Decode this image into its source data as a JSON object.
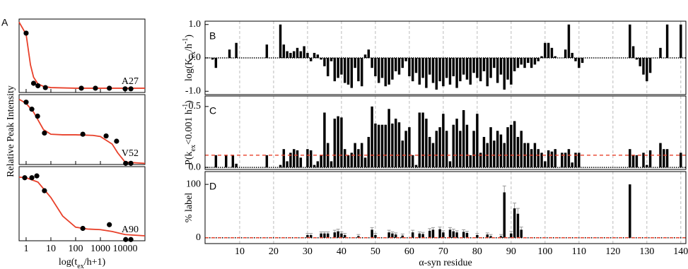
{
  "chart_data": [
    {
      "type": "scatter",
      "panel_label": "A",
      "ylabel": "Relative Peak Intensity",
      "xlabel": [
        [
          "log(t",
          ""
        ],
        [
          "ex",
          "sub"
        ],
        [
          "/h+1)",
          ""
        ]
      ],
      "log_x": true,
      "xlim": [
        0.52,
        63000
      ],
      "xticks": [
        1,
        10,
        100,
        1000,
        10000
      ],
      "ylim": [
        -0.1,
        1.1
      ],
      "point_color": "#000000",
      "fit_color": "#e8402a",
      "panels": [
        {
          "label": "A27",
          "x": [
            1,
            2,
            3,
            6,
            170,
            630,
            2300,
            10000,
            17000
          ],
          "y": [
            0.87,
            0.05,
            0.01,
            -0.02,
            -0.03,
            -0.03,
            -0.03,
            -0.04,
            -0.04
          ],
          "fit_x": [
            0.52,
            1,
            1.5,
            2,
            3,
            5,
            10,
            100,
            1000,
            63000
          ],
          "fit_y": [
            1.05,
            0.85,
            0.35,
            0.15,
            0.04,
            0.0,
            -0.02,
            -0.03,
            -0.03,
            -0.03
          ]
        },
        {
          "label": "V52",
          "x": [
            1,
            1.7,
            2.9,
            5.5,
            195,
            1700,
            4500,
            10500,
            17000
          ],
          "y": [
            0.97,
            0.85,
            0.73,
            0.44,
            0.42,
            0.39,
            0.3,
            -0.08,
            -0.08
          ],
          "fit_x": [
            0.52,
            1,
            2,
            5,
            10,
            30,
            100,
            500,
            1000,
            3000,
            5000,
            10000,
            63000
          ],
          "fit_y": [
            1.02,
            0.95,
            0.8,
            0.5,
            0.42,
            0.41,
            0.41,
            0.4,
            0.38,
            0.25,
            0.1,
            -0.06,
            -0.08
          ]
        },
        {
          "label": "A90",
          "x": [
            0.88,
            1.7,
            2.7,
            5.5,
            195,
            2300,
            10500,
            17000
          ],
          "y": [
            0.92,
            0.92,
            0.95,
            0.71,
            0.1,
            0.16,
            -0.08,
            -0.08
          ],
          "fit_x": [
            0.52,
            1,
            3,
            10,
            30,
            100,
            300,
            1000,
            3000,
            10000,
            63000
          ],
          "fit_y": [
            0.93,
            0.92,
            0.85,
            0.6,
            0.3,
            0.12,
            0.09,
            0.08,
            0.05,
            0.0,
            -0.02
          ]
        }
      ]
    },
    {
      "type": "bar",
      "panel_label": "B",
      "ylabel": [
        [
          "log(K",
          ""
        ],
        [
          "ex",
          "sub"
        ],
        [
          "/h",
          ""
        ],
        [
          "-1",
          "sup"
        ],
        [
          ")",
          ""
        ]
      ],
      "xlim": [
        -0.2,
        141.5
      ],
      "xticks": [
        10,
        20,
        30,
        40,
        50,
        60,
        70,
        80,
        90,
        100,
        110,
        120,
        130,
        140
      ],
      "ylim": [
        -1.1,
        1.1
      ],
      "yticks": [
        {
          "value": -1,
          "label": "-1.0"
        },
        {
          "value": 0,
          "label": "0.0"
        },
        {
          "value": 1,
          "label": "1.0"
        }
      ],
      "grid": true,
      "color": "#000000",
      "x": [
        1,
        2,
        3,
        4,
        5,
        6,
        7,
        8,
        9,
        10,
        11,
        12,
        13,
        14,
        15,
        16,
        17,
        18,
        19,
        20,
        21,
        22,
        23,
        24,
        25,
        26,
        27,
        28,
        29,
        30,
        31,
        32,
        33,
        34,
        35,
        36,
        37,
        38,
        39,
        40,
        41,
        42,
        43,
        44,
        45,
        46,
        47,
        48,
        49,
        50,
        51,
        52,
        53,
        54,
        55,
        56,
        57,
        58,
        59,
        60,
        61,
        62,
        63,
        64,
        65,
        66,
        67,
        68,
        69,
        70,
        71,
        72,
        73,
        74,
        75,
        76,
        77,
        78,
        79,
        80,
        81,
        82,
        83,
        84,
        85,
        86,
        87,
        88,
        89,
        90,
        91,
        92,
        93,
        94,
        95,
        96,
        97,
        98,
        99,
        100,
        101,
        102,
        103,
        104,
        105,
        106,
        107,
        108,
        109,
        110,
        111,
        112,
        113,
        114,
        115,
        116,
        117,
        118,
        119,
        120,
        121,
        122,
        123,
        124,
        125,
        126,
        127,
        128,
        129,
        130,
        131,
        132,
        133,
        134,
        135,
        136,
        137,
        138,
        139,
        140
      ],
      "values": [
        null,
        -0.05,
        -0.3,
        null,
        null,
        null,
        0.25,
        null,
        0.45,
        null,
        null,
        null,
        null,
        null,
        null,
        null,
        null,
        0.4,
        null,
        null,
        null,
        1.0,
        0.4,
        0.2,
        0.15,
        0.2,
        0.3,
        0.2,
        0.35,
        0.15,
        -0.1,
        0.15,
        0.1,
        -0.05,
        -0.25,
        -0.55,
        -0.1,
        -0.7,
        -0.6,
        -0.5,
        -0.75,
        -0.8,
        -0.9,
        -0.3,
        -0.7,
        -0.85,
        0.1,
        0.25,
        -0.3,
        -0.55,
        -0.75,
        -0.6,
        -0.85,
        -0.8,
        -0.65,
        -0.4,
        -0.5,
        -0.3,
        -0.1,
        -0.55,
        -0.7,
        -0.45,
        -0.8,
        -0.6,
        -0.9,
        -0.5,
        -0.75,
        -0.95,
        -0.7,
        -0.85,
        -0.6,
        -0.8,
        -0.55,
        -0.9,
        -0.7,
        -0.5,
        -0.65,
        -0.8,
        -0.45,
        -0.6,
        -0.7,
        -0.4,
        -0.85,
        -0.6,
        -0.3,
        -0.75,
        -0.5,
        -0.95,
        -0.65,
        -0.8,
        -0.4,
        -0.3,
        -0.2,
        -0.3,
        -0.15,
        -0.3,
        -0.2,
        -0.1,
        0.05,
        0.45,
        0.45,
        0.3,
        0.05,
        null,
        null,
        0.25,
        1.0,
        0.15,
        -0.1,
        -0.3,
        -0.15,
        null,
        null,
        null,
        null,
        null,
        null,
        null,
        null,
        null,
        null,
        null,
        null,
        null,
        1.0,
        0.35,
        -0.05,
        -0.25,
        -0.5,
        -0.7,
        -0.45,
        null,
        null,
        0.3,
        null,
        1.0,
        null,
        null,
        null,
        1.0
      ]
    },
    {
      "type": "bar",
      "panel_label": "C",
      "ylabel": [
        [
          "P(k",
          ""
        ],
        [
          "ex",
          "sub"
        ],
        [
          "<0.001 h",
          ""
        ],
        [
          "-1",
          "sup"
        ],
        [
          ")",
          ""
        ]
      ],
      "xlim": [
        -0.2,
        141.5
      ],
      "xticks": [
        10,
        20,
        30,
        40,
        50,
        60,
        70,
        80,
        90,
        100,
        110,
        120,
        130,
        140
      ],
      "ylim": [
        -0.017,
        0.586
      ],
      "yticks": [
        {
          "value": 0,
          "label": "0.0"
        },
        0.5
      ],
      "grid": true,
      "color": "#000000",
      "threshold": 0.1,
      "threshold_color": "#e8402a",
      "x": [
        1,
        2,
        3,
        4,
        5,
        6,
        7,
        8,
        9,
        10,
        11,
        12,
        13,
        14,
        15,
        16,
        17,
        18,
        19,
        20,
        21,
        22,
        23,
        24,
        25,
        26,
        27,
        28,
        29,
        30,
        31,
        32,
        33,
        34,
        35,
        36,
        37,
        38,
        39,
        40,
        41,
        42,
        43,
        44,
        45,
        46,
        47,
        48,
        49,
        50,
        51,
        52,
        53,
        54,
        55,
        56,
        57,
        58,
        59,
        60,
        61,
        62,
        63,
        64,
        65,
        66,
        67,
        68,
        69,
        70,
        71,
        72,
        73,
        74,
        75,
        76,
        77,
        78,
        79,
        80,
        81,
        82,
        83,
        84,
        85,
        86,
        87,
        88,
        89,
        90,
        91,
        92,
        93,
        94,
        95,
        96,
        97,
        98,
        99,
        100,
        101,
        102,
        103,
        104,
        105,
        106,
        107,
        108,
        109,
        110,
        111,
        112,
        113,
        114,
        115,
        116,
        117,
        118,
        119,
        120,
        121,
        122,
        123,
        124,
        125,
        126,
        127,
        128,
        129,
        130,
        131,
        132,
        133,
        134,
        135,
        136,
        137,
        138,
        139,
        140
      ],
      "values": [
        null,
        null,
        0.1,
        null,
        null,
        0.1,
        null,
        0.1,
        0.03,
        null,
        null,
        null,
        null,
        null,
        null,
        null,
        null,
        0.1,
        null,
        null,
        null,
        0.02,
        0.15,
        0.05,
        0.12,
        0.15,
        0.14,
        0.08,
        null,
        0.15,
        0.14,
        0.02,
        0.05,
        0.1,
        0.45,
        0.2,
        0.05,
        0.4,
        0.42,
        0.41,
        0.15,
        0.1,
        0.12,
        0.2,
        0.15,
        0.2,
        0.08,
        0.25,
        0.5,
        0.36,
        0.35,
        0.35,
        0.35,
        0.48,
        0.36,
        0.4,
        0.37,
        0.22,
        0.3,
        0.33,
        0.1,
        0.02,
        0.45,
        0.45,
        0.4,
        0.25,
        0.2,
        0.3,
        0.33,
        0.44,
        0.3,
        0.05,
        0.35,
        0.4,
        0.3,
        0.47,
        0.35,
        0.1,
        0.3,
        0.44,
        0.12,
        0.25,
        0.2,
        0.33,
        0.22,
        0.3,
        0.27,
        0.2,
        0.33,
        0.35,
        0.38,
        0.25,
        0.3,
        0.2,
        0.2,
        0.15,
        0.2,
        0.15,
        0.12,
        0.05,
        0.14,
        0.13,
        0.15,
        null,
        0.12,
        0.12,
        0.15,
        0.04,
        0.12,
        0.12,
        null,
        null,
        null,
        null,
        null,
        null,
        null,
        null,
        null,
        null,
        null,
        null,
        null,
        null,
        0.15,
        0.1,
        0.1,
        null,
        0.12,
        0.02,
        0.14,
        null,
        null,
        0.2,
        0.15,
        0.15,
        null,
        null,
        null,
        0.12
      ]
    },
    {
      "type": "bar",
      "panel_label": "D",
      "ylabel": [
        [
          "% label",
          ""
        ]
      ],
      "xlabel": "α-syn residue",
      "show_xtick_labels": true,
      "xlim": [
        -0.2,
        141.5
      ],
      "xticks": [
        10,
        20,
        30,
        40,
        50,
        60,
        70,
        80,
        90,
        100,
        110,
        120,
        130,
        140
      ],
      "ylim": [
        -11,
        124
      ],
      "yticks": [
        0,
        100
      ],
      "grid": true,
      "color": "#000000",
      "error_color": "#999999",
      "threshold": 0,
      "threshold_color": "#e8402a",
      "x": [
        30,
        31,
        34,
        35,
        36,
        38,
        39,
        40,
        41,
        45,
        49,
        50,
        54,
        55,
        56,
        58,
        61,
        63,
        64,
        66,
        67,
        69,
        70,
        72,
        73,
        74,
        76,
        77,
        80,
        83,
        84,
        87,
        88,
        90,
        91,
        92,
        93,
        125
      ],
      "values": [
        5,
        5,
        8,
        8,
        8,
        10,
        12,
        8,
        5,
        3,
        15,
        5,
        10,
        8,
        6,
        4,
        10,
        8,
        7,
        13,
        15,
        16,
        10,
        15,
        12,
        10,
        11,
        9,
        5,
        6,
        3,
        3,
        85,
        8,
        55,
        45,
        15,
        100
      ],
      "errors": [
        3,
        3,
        3,
        3,
        3,
        4,
        4,
        3,
        3,
        3,
        4,
        3,
        4,
        3,
        3,
        3,
        4,
        3,
        3,
        4,
        4,
        4,
        3,
        4,
        4,
        3,
        4,
        3,
        3,
        3,
        3,
        3,
        12,
        4,
        10,
        10,
        5,
        0
      ]
    }
  ]
}
